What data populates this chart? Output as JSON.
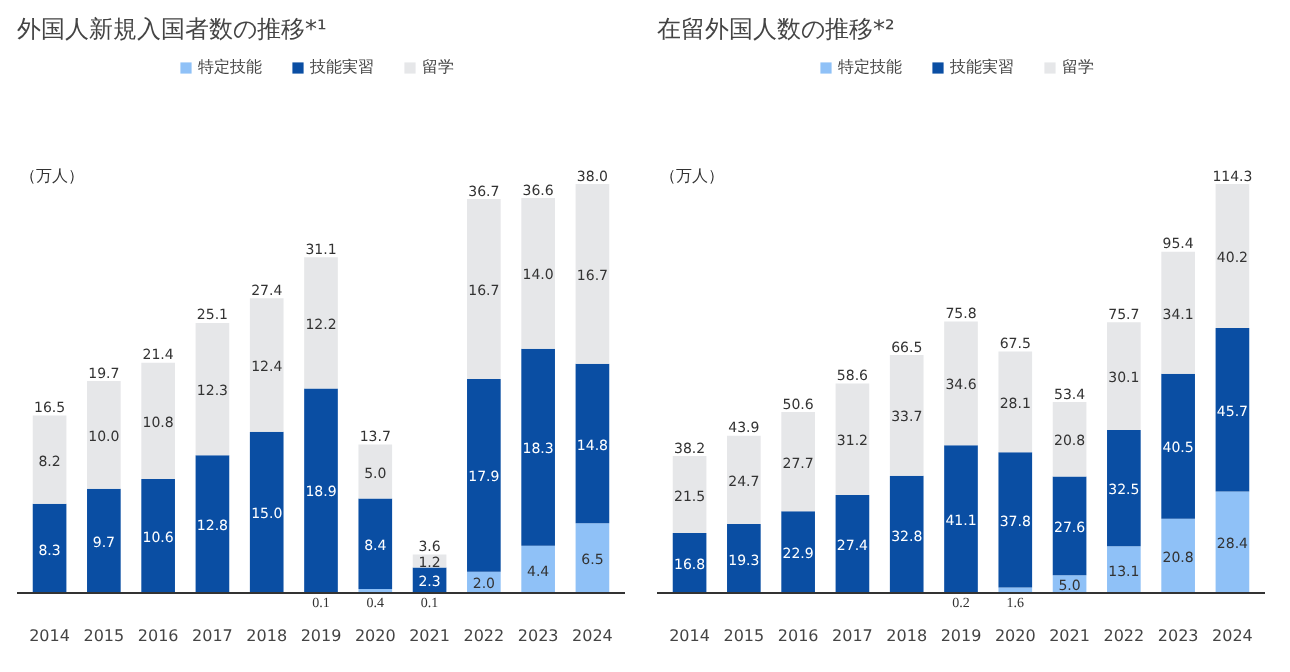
{
  "chart_data": [
    {
      "type": "bar",
      "stacked": true,
      "title": "外国人新規入国者数の推移*¹",
      "ylabel": "（万人）",
      "legend": "top",
      "tick_labels": "x",
      "categories": [
        "2014",
        "2015",
        "2016",
        "2017",
        "2018",
        "2019",
        "2020",
        "2021",
        "2022",
        "2023",
        "2024"
      ],
      "series": [
        {
          "name": "特定技能",
          "color": "#8fc1f7",
          "values": [
            null,
            null,
            null,
            null,
            null,
            0.1,
            0.4,
            0.1,
            2.0,
            4.4,
            6.5
          ],
          "value_labels": [
            null,
            null,
            null,
            null,
            null,
            "0.1",
            "0.4",
            "0.1",
            "2.0",
            "4.4",
            "6.5"
          ]
        },
        {
          "name": "技能実習",
          "color": "#0a4ea3",
          "values": [
            8.3,
            9.7,
            10.6,
            12.8,
            15.0,
            18.9,
            8.4,
            2.3,
            17.9,
            18.3,
            14.8
          ],
          "value_labels": [
            "8.3",
            "9.7",
            "10.6",
            "12.8",
            "15.0",
            "18.9",
            "8.4",
            "2.3",
            "17.9",
            "18.3",
            "14.8"
          ]
        },
        {
          "name": "留学",
          "color": "#e6e7e9",
          "values": [
            8.2,
            10.0,
            10.8,
            12.3,
            12.4,
            12.2,
            5.0,
            1.2,
            16.7,
            14.0,
            16.7
          ],
          "value_labels": [
            "8.2",
            "10.0",
            "10.8",
            "12.3",
            "12.4",
            "12.2",
            "5.0",
            "1.2",
            "16.7",
            "14.0",
            "16.7"
          ]
        }
      ],
      "totals": [
        "16.5",
        "19.7",
        "21.4",
        "25.1",
        "27.4",
        "31.1",
        "13.7",
        "3.6",
        "36.7",
        "36.6",
        "38.0"
      ]
    },
    {
      "type": "bar",
      "stacked": true,
      "title": "在留外国人数の推移*²",
      "ylabel": "（万人）",
      "legend": "top",
      "tick_labels": "x",
      "categories": [
        "2014",
        "2015",
        "2016",
        "2017",
        "2018",
        "2019",
        "2020",
        "2021",
        "2022",
        "2023",
        "2024"
      ],
      "series": [
        {
          "name": "特定技能",
          "color": "#8fc1f7",
          "values": [
            null,
            null,
            null,
            null,
            null,
            0.2,
            1.6,
            5.0,
            13.1,
            20.8,
            28.4
          ],
          "value_labels": [
            null,
            null,
            null,
            null,
            null,
            "0.2",
            "1.6",
            "5.0",
            "13.1",
            "20.8",
            "28.4"
          ]
        },
        {
          "name": "技能実習",
          "color": "#0a4ea3",
          "values": [
            16.8,
            19.3,
            22.9,
            27.4,
            32.8,
            41.1,
            37.8,
            27.6,
            32.5,
            40.5,
            45.7
          ],
          "value_labels": [
            "16.8",
            "19.3",
            "22.9",
            "27.4",
            "32.8",
            "41.1",
            "37.8",
            "27.6",
            "32.5",
            "40.5",
            "45.7"
          ]
        },
        {
          "name": "留学",
          "color": "#e6e7e9",
          "values": [
            21.5,
            24.7,
            27.7,
            31.2,
            33.7,
            34.6,
            28.1,
            20.8,
            30.1,
            34.1,
            40.2
          ],
          "value_labels": [
            "21.5",
            "24.7",
            "27.7",
            "31.2",
            "33.7",
            "34.6",
            "28.1",
            "20.8",
            "30.1",
            "34.1",
            "40.2"
          ]
        }
      ],
      "totals": [
        "38.2",
        "43.9",
        "50.6",
        "58.6",
        "66.5",
        "75.8",
        "67.5",
        "53.4",
        "75.7",
        "95.4",
        "114.3"
      ]
    }
  ]
}
